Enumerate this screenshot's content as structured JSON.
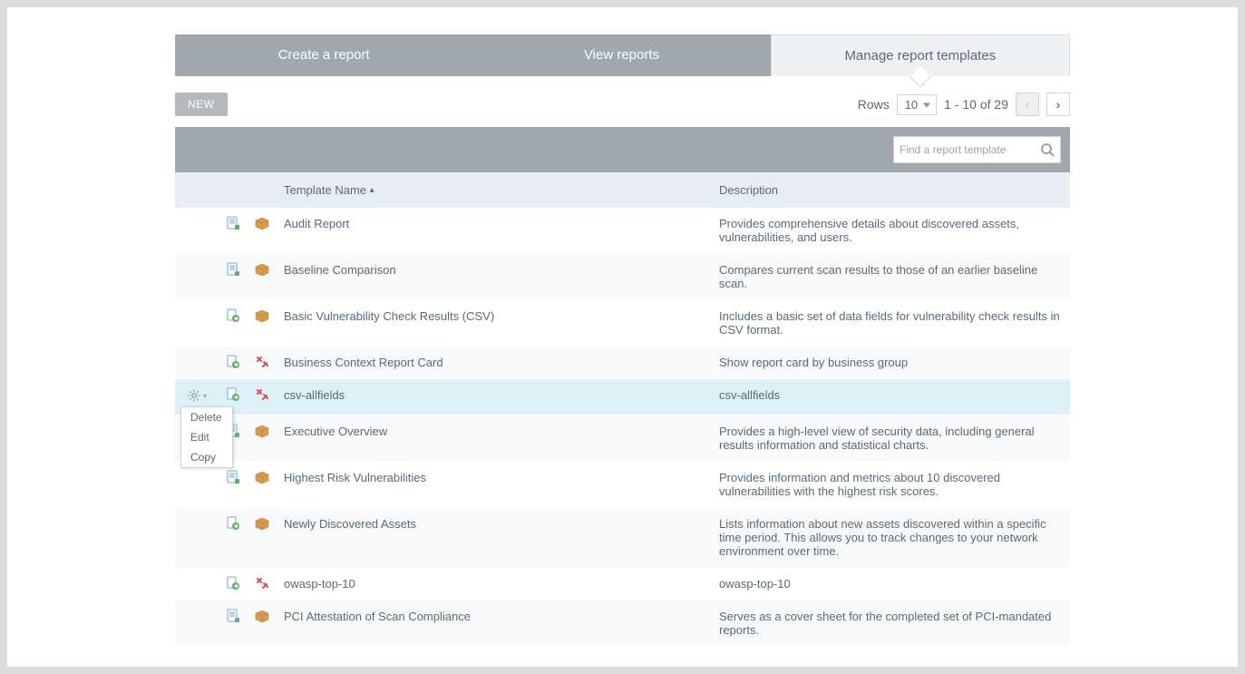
{
  "tabs": {
    "create": "Create a report",
    "view": "View reports",
    "manage": "Manage report templates"
  },
  "toolbar": {
    "new_label": "NEW",
    "rows_label": "Rows",
    "rows_value": "10",
    "range_text": "1 - 10 of 29"
  },
  "search": {
    "placeholder": "Find a report template"
  },
  "columns": {
    "name": "Template Name",
    "description": "Description"
  },
  "dropdown": {
    "delete": "Delete",
    "edit": "Edit",
    "copy": "Copy"
  },
  "rows": [
    {
      "icon1": "doc",
      "icon2": "box",
      "name": "Audit Report",
      "desc": "Provides comprehensive details about discovered assets, vulnerabilities, and users."
    },
    {
      "icon1": "doc",
      "icon2": "box",
      "name": "Baseline Comparison",
      "desc": "Compares current scan results to those of an earlier baseline scan."
    },
    {
      "icon1": "export",
      "icon2": "box",
      "name": "Basic Vulnerability Check Results (CSV)",
      "desc": "Includes a basic set of data fields for vulnerability check results in CSV format."
    },
    {
      "icon1": "export",
      "icon2": "tools",
      "name": "Business Context Report Card",
      "desc": "Show report card by business group"
    },
    {
      "icon1": "export",
      "icon2": "tools",
      "name": "csv-allfields",
      "desc": "csv-allfields",
      "highlight": true,
      "gear": true
    },
    {
      "icon1": "doc",
      "icon2": "box",
      "name": "Executive Overview",
      "desc": "Provides a high-level view of security data, including general results information and statistical charts."
    },
    {
      "icon1": "doc",
      "icon2": "box",
      "name": "Highest Risk Vulnerabilities",
      "desc": "Provides information and metrics about 10 discovered vulnerabilities with the highest risk scores."
    },
    {
      "icon1": "export",
      "icon2": "box",
      "name": "Newly Discovered Assets",
      "desc": "Lists information about new assets discovered within a specific time period. This allows you to track changes to your network environment over time."
    },
    {
      "icon1": "export",
      "icon2": "tools",
      "name": "owasp-top-10",
      "desc": "owasp-top-10"
    },
    {
      "icon1": "doc",
      "icon2": "box",
      "name": "PCI Attestation of Scan Compliance",
      "desc": "Serves as a cover sheet for the completed set of PCI-mandated reports."
    }
  ],
  "colors": {
    "tab_inactive_bg": "#a0a7ad",
    "tab_active_bg": "#eef1f4",
    "header_bg": "#e7edf3",
    "highlight_bg": "#def0f7",
    "text": "#5a6a78"
  }
}
